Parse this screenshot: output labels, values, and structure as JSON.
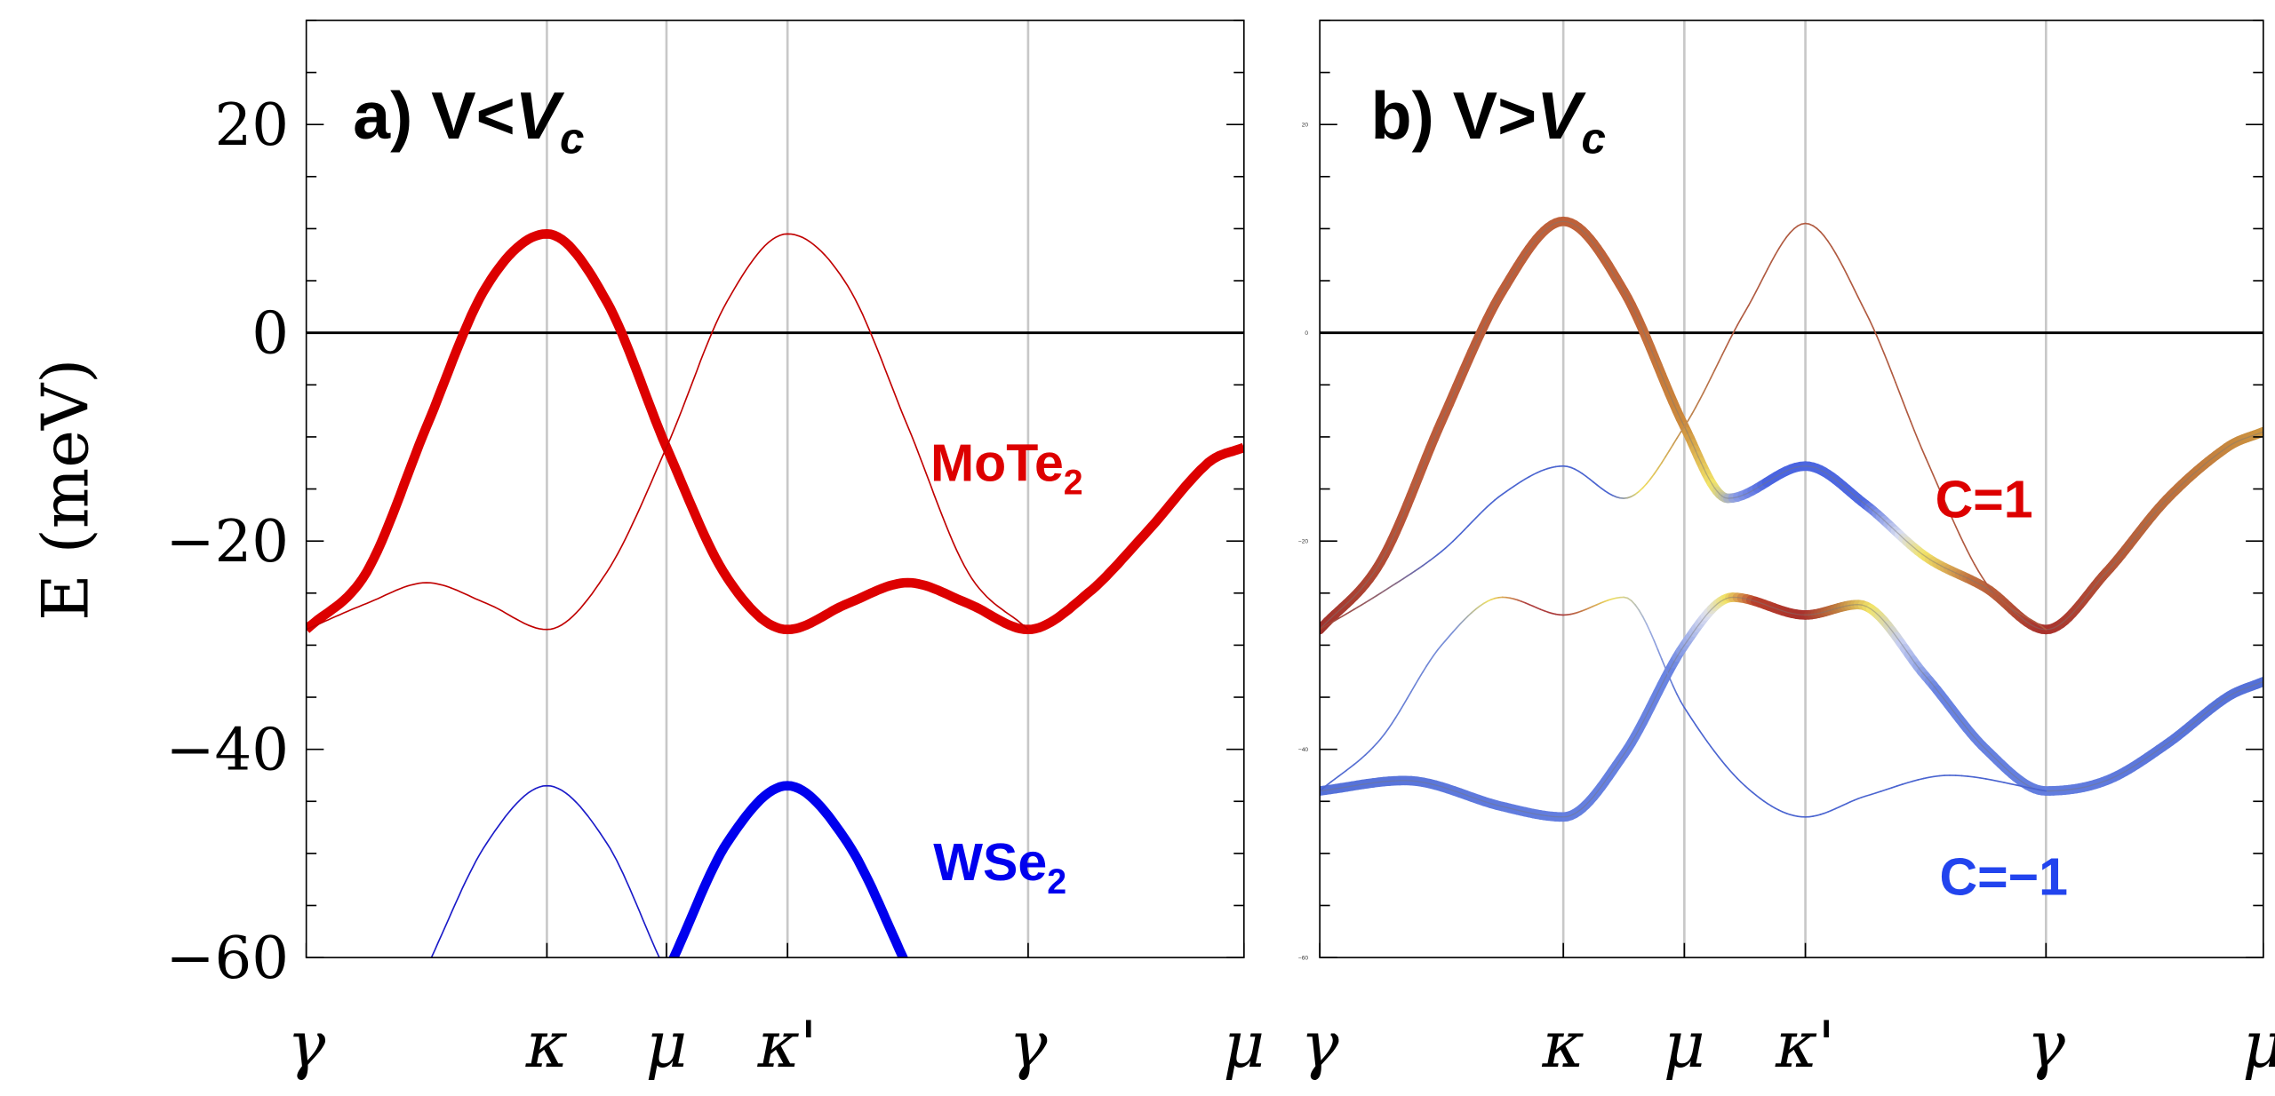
{
  "figure": {
    "ylabel": "E (meV)"
  },
  "chart_data": [
    {
      "type": "line",
      "panel": "a",
      "title": {
        "prefix": "a) V<",
        "main": "V",
        "sub": "c"
      },
      "ylim": [
        -60,
        30
      ],
      "yticks": [
        20,
        0,
        -20,
        -40,
        -60
      ],
      "ytick_labels": [
        "20",
        "0",
        "−20",
        "−40",
        "−60"
      ],
      "minor_tick_step": 5,
      "grid": "vertical lines at high-symmetry points",
      "xticks": [
        {
          "k": 0,
          "label": "γ"
        },
        {
          "k": 1,
          "label": "κ"
        },
        {
          "k": 1.5,
          "label": "μ"
        },
        {
          "k": 2,
          "label": "κ'"
        },
        {
          "k": 3,
          "label": "γ"
        },
        {
          "k": 3.9,
          "label": "μ"
        }
      ],
      "xlim": [
        0,
        3.9
      ],
      "zero_line": 0,
      "bands": [
        {
          "weight": "thick",
          "colors": [
            {
              "k": 0,
              "c": "#dd0000"
            }
          ],
          "points": [
            [
              0,
              -28.5
            ],
            [
              0.25,
              -23
            ],
            [
              0.5,
              -9
            ],
            [
              0.75,
              4.5
            ],
            [
              1,
              9.5
            ],
            [
              1.25,
              3
            ],
            [
              1.5,
              -11
            ],
            [
              1.75,
              -23.5
            ],
            [
              2,
              -28.5
            ],
            [
              2.25,
              -26
            ],
            [
              2.5,
              -24
            ],
            [
              2.75,
              -26
            ],
            [
              3,
              -28.5
            ],
            [
              3.25,
              -25
            ],
            [
              3.5,
              -19
            ],
            [
              3.75,
              -12.5
            ],
            [
              3.9,
              -11
            ]
          ]
        },
        {
          "weight": "thin",
          "colors": [
            {
              "k": 0,
              "c": "#c00000"
            }
          ],
          "points": [
            [
              0,
              -28.5
            ],
            [
              0.25,
              -26
            ],
            [
              0.5,
              -24
            ],
            [
              0.75,
              -26
            ],
            [
              1,
              -28.5
            ],
            [
              1.25,
              -23
            ],
            [
              1.5,
              -11
            ],
            [
              1.75,
              3
            ],
            [
              2,
              9.5
            ],
            [
              2.25,
              4.5
            ],
            [
              2.5,
              -9
            ],
            [
              2.75,
              -23
            ],
            [
              3,
              -28.5
            ]
          ]
        },
        {
          "weight": "thin",
          "colors": [
            {
              "k": 0,
              "c": "#1a1ac8"
            }
          ],
          "points": [
            [
              0.45,
              -64
            ],
            [
              0.52,
              -60
            ],
            [
              0.75,
              -49
            ],
            [
              1,
              -43.5
            ],
            [
              1.25,
              -49
            ],
            [
              1.47,
              -60
            ],
            [
              1.55,
              -64
            ]
          ]
        },
        {
          "weight": "thick",
          "colors": [
            {
              "k": 0,
              "c": "#0000ee"
            }
          ],
          "points": [
            [
              1.45,
              -64
            ],
            [
              1.53,
              -60
            ],
            [
              1.75,
              -49
            ],
            [
              2,
              -43.5
            ],
            [
              2.25,
              -49
            ],
            [
              2.48,
              -60
            ],
            [
              2.55,
              -64
            ]
          ]
        }
      ],
      "annotations": [
        {
          "text": "MoTe",
          "sub": "2",
          "color": "#dd0000"
        },
        {
          "text": "WSe",
          "sub": "2",
          "color": "#0000ee"
        }
      ]
    },
    {
      "type": "line",
      "panel": "b",
      "title": {
        "prefix": "b) V>",
        "main": "V",
        "sub": "c"
      },
      "ylim": [
        -60,
        30
      ],
      "yticks": [
        20,
        0,
        -20,
        -40,
        -60
      ],
      "ytick_labels": [
        "20",
        "0",
        "−20",
        "−40",
        "−60"
      ],
      "minor_tick_step": 5,
      "grid": "vertical lines at high-symmetry points",
      "xticks": [
        {
          "k": 0,
          "label": "γ"
        },
        {
          "k": 1,
          "label": "κ"
        },
        {
          "k": 1.5,
          "label": "μ"
        },
        {
          "k": 2,
          "label": "κ'"
        },
        {
          "k": 3,
          "label": "γ"
        },
        {
          "k": 3.9,
          "label": "μ"
        }
      ],
      "xlim": [
        0,
        3.9
      ],
      "zero_line": 0,
      "bands": [
        {
          "weight": "thick",
          "colors": [
            {
              "k": 0,
              "c": "#a0302c"
            },
            {
              "k": 0.4,
              "c": "#bb5a3a"
            },
            {
              "k": 1.3,
              "c": "#c0643a"
            },
            {
              "k": 1.5,
              "c": "#cc8a3c"
            },
            {
              "k": 1.62,
              "c": "#f2e468"
            },
            {
              "k": 1.72,
              "c": "#8a9ce8"
            },
            {
              "k": 1.85,
              "c": "#4a64e0"
            },
            {
              "k": 2.25,
              "c": "#4e68e0"
            },
            {
              "k": 2.4,
              "c": "#d8ddf0"
            },
            {
              "k": 2.5,
              "c": "#f2e468"
            },
            {
              "k": 2.7,
              "c": "#c07040"
            },
            {
              "k": 3,
              "c": "#a8302c"
            },
            {
              "k": 3.4,
              "c": "#b8643c"
            },
            {
              "k": 3.9,
              "c": "#cc9440"
            }
          ],
          "points": [
            [
              0,
              -28.5
            ],
            [
              0.25,
              -22
            ],
            [
              0.5,
              -8.5
            ],
            [
              0.75,
              4
            ],
            [
              1,
              10.7
            ],
            [
              1.25,
              4
            ],
            [
              1.5,
              -9
            ],
            [
              1.68,
              -15.9
            ],
            [
              2,
              -12.8
            ],
            [
              2.25,
              -16.5
            ],
            [
              2.5,
              -21.5
            ],
            [
              2.75,
              -24.5
            ],
            [
              3,
              -28.5
            ],
            [
              3.25,
              -23
            ],
            [
              3.5,
              -16
            ],
            [
              3.75,
              -11
            ],
            [
              3.9,
              -9.5
            ]
          ]
        },
        {
          "weight": "thin",
          "colors": [
            {
              "k": 0,
              "c": "#a8402c"
            },
            {
              "k": 0.3,
              "c": "#8a6a80"
            },
            {
              "k": 0.5,
              "c": "#4a64d0"
            },
            {
              "k": 1.2,
              "c": "#4a64d0"
            },
            {
              "k": 1.32,
              "c": "#f0e060"
            },
            {
              "k": 1.5,
              "c": "#c08a50"
            },
            {
              "k": 1.7,
              "c": "#b05a40"
            },
            {
              "k": 3,
              "c": "#b05a40"
            }
          ],
          "points": [
            [
              0,
              -28.5
            ],
            [
              0.25,
              -25
            ],
            [
              0.5,
              -21
            ],
            [
              0.75,
              -15.5
            ],
            [
              1,
              -12.8
            ],
            [
              1.25,
              -15.9
            ],
            [
              1.5,
              -9
            ],
            [
              1.75,
              2
            ],
            [
              2,
              10.5
            ],
            [
              2.25,
              2
            ],
            [
              2.5,
              -12
            ],
            [
              2.75,
              -24
            ],
            [
              3,
              -28.5
            ]
          ]
        },
        {
          "weight": "thick",
          "colors": [
            {
              "k": 0,
              "c": "#5470d8"
            },
            {
              "k": 1.45,
              "c": "#6a84e2"
            },
            {
              "k": 1.6,
              "c": "#dde0f0"
            },
            {
              "k": 1.68,
              "c": "#f2e468"
            },
            {
              "k": 1.8,
              "c": "#b8402c"
            },
            {
              "k": 2,
              "c": "#a8302c"
            },
            {
              "k": 2.15,
              "c": "#c08040"
            },
            {
              "k": 2.28,
              "c": "#f2e468"
            },
            {
              "k": 2.4,
              "c": "#c8d0f0"
            },
            {
              "k": 2.55,
              "c": "#6a84e2"
            },
            {
              "k": 3.9,
              "c": "#5470d8"
            }
          ],
          "points": [
            [
              0,
              -44
            ],
            [
              0.35,
              -43
            ],
            [
              0.75,
              -45.5
            ],
            [
              1,
              -46.5
            ],
            [
              1.25,
              -40.5
            ],
            [
              1.5,
              -30
            ],
            [
              1.7,
              -25.4
            ],
            [
              2,
              -27.1
            ],
            [
              2.22,
              -26.1
            ],
            [
              2.5,
              -33
            ],
            [
              2.75,
              -40
            ],
            [
              3,
              -44
            ],
            [
              3.25,
              -43
            ],
            [
              3.5,
              -39.5
            ],
            [
              3.75,
              -35
            ],
            [
              3.9,
              -33.5
            ]
          ]
        },
        {
          "weight": "thin",
          "colors": [
            {
              "k": 0,
              "c": "#4a64d0"
            },
            {
              "k": 0.55,
              "c": "#7a90d8"
            },
            {
              "k": 0.7,
              "c": "#f0e060"
            },
            {
              "k": 0.85,
              "c": "#b04040"
            },
            {
              "k": 1,
              "c": "#a83838"
            },
            {
              "k": 1.2,
              "c": "#f0e060"
            },
            {
              "k": 1.35,
              "c": "#a0b0e0"
            },
            {
              "k": 1.5,
              "c": "#4a64d0"
            },
            {
              "k": 3,
              "c": "#4a64d0"
            }
          ],
          "points": [
            [
              0,
              -44
            ],
            [
              0.25,
              -39
            ],
            [
              0.5,
              -30
            ],
            [
              0.75,
              -25.4
            ],
            [
              1,
              -27.1
            ],
            [
              1.25,
              -25.4
            ],
            [
              1.5,
              -36
            ],
            [
              1.75,
              -43.5
            ],
            [
              2,
              -46.5
            ],
            [
              2.25,
              -44.5
            ],
            [
              2.6,
              -42.5
            ],
            [
              3,
              -44
            ]
          ]
        }
      ],
      "annotations": [
        {
          "text": "C=1",
          "sub": "",
          "color": "#dd0000"
        },
        {
          "text": "C=−1",
          "sub": "",
          "color": "#2244ee"
        }
      ]
    }
  ]
}
